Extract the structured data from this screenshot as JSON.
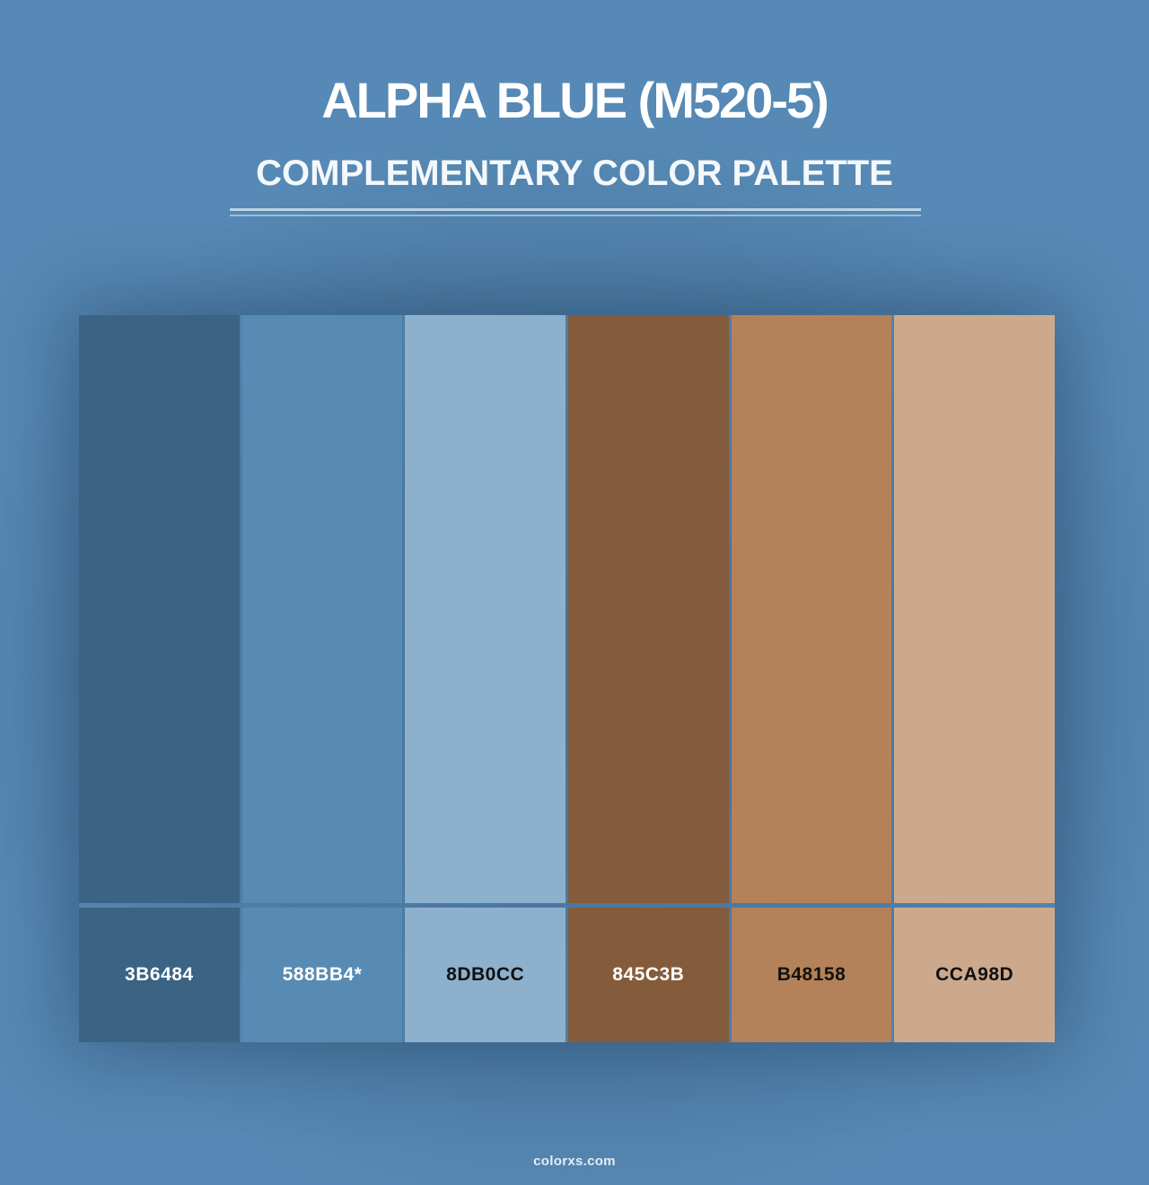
{
  "header": {
    "title": "ALPHA BLUE (M520-5)",
    "subtitle": "COMPLEMENTARY COLOR PALETTE"
  },
  "palette": {
    "swatches": [
      {
        "label": "3B6484",
        "hex": "#3B6484",
        "text_color": "#FFFFFF"
      },
      {
        "label": "588BB4*",
        "hex": "#588BB4",
        "text_color": "#FFFFFF"
      },
      {
        "label": "8DB0CC",
        "hex": "#8DB0CC",
        "text_color": "#111111"
      },
      {
        "label": "845C3B",
        "hex": "#845C3B",
        "text_color": "#FFFFFF"
      },
      {
        "label": "B48158",
        "hex": "#B48158",
        "text_color": "#111111"
      },
      {
        "label": "CCA98D",
        "hex": "#CCA98D",
        "text_color": "#111111"
      }
    ]
  },
  "footer": {
    "watermark": "colorxs.com"
  },
  "theme": {
    "background": "#5689B5",
    "background_center": "#4B79A4",
    "divider_color": "#DCE8F2",
    "heading_color": "#FFFFFF"
  }
}
